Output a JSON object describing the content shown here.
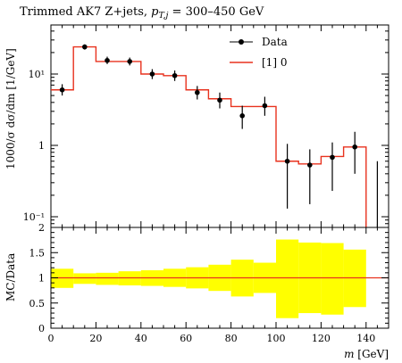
{
  "chart_data": [
    {
      "type": "line",
      "title_main": "Trimmed AK7 Z+jets, ",
      "title_cut": "p",
      "title_sub": "T,j",
      "title_range": " = 300–450 GeV",
      "ylabel": "1000/σ dσ/dm [1/GeV]",
      "yscale": "log",
      "ylim": [
        0.08,
        40
      ],
      "xlim": [
        0,
        150
      ],
      "ytick_labels": {
        "y01": "10⁻¹",
        "y1": "1",
        "y10": "10¹"
      },
      "legend": {
        "data_label": "Data",
        "mc_label": "[1] 0"
      },
      "data_points": {
        "x": [
          5,
          15,
          25,
          35,
          45,
          55,
          65,
          75,
          85,
          95,
          105,
          115,
          125,
          135,
          145
        ],
        "y": [
          6.0,
          24.0,
          15.5,
          15.0,
          10.0,
          9.5,
          5.5,
          4.3,
          2.6,
          3.6,
          0.6,
          0.53,
          0.68,
          0.95,
          0.02
        ],
        "ylo": [
          5.0,
          22.0,
          13.8,
          13.2,
          8.5,
          8.0,
          4.4,
          3.3,
          1.7,
          2.6,
          0.13,
          0.15,
          0.23,
          0.4,
          0.02
        ],
        "yhi": [
          7.2,
          26.0,
          17.5,
          17.0,
          11.7,
          11.2,
          6.8,
          5.5,
          3.6,
          4.8,
          1.05,
          0.88,
          1.1,
          1.55,
          0.6
        ]
      },
      "mc_histogram": {
        "edges": [
          0,
          10,
          20,
          30,
          40,
          50,
          60,
          70,
          80,
          90,
          100,
          110,
          120,
          130,
          140
        ],
        "values": [
          6.0,
          24.0,
          15.0,
          15.0,
          10.0,
          9.5,
          6.0,
          4.5,
          3.5,
          3.5,
          0.6,
          0.55,
          0.7,
          0.95
        ]
      }
    },
    {
      "type": "area",
      "ylabel": "MC/Data",
      "xlabel": "m [GeV]",
      "xlabel_var": "m",
      "xlabel_unit": " [GeV]",
      "ylim": [
        0,
        2
      ],
      "xlim": [
        0,
        150
      ],
      "xticks": [
        0,
        20,
        40,
        60,
        80,
        100,
        120,
        140
      ],
      "yticks": [
        0,
        0.5,
        1,
        1.5,
        2
      ],
      "ytick_labels": [
        "0",
        "0.5",
        "1",
        "1.5",
        "2"
      ],
      "band": {
        "edges": [
          0,
          10,
          20,
          30,
          40,
          50,
          60,
          70,
          80,
          90,
          100,
          110,
          120,
          130,
          140
        ],
        "lo": [
          0.8,
          0.88,
          0.86,
          0.85,
          0.84,
          0.82,
          0.79,
          0.74,
          0.63,
          0.7,
          0.2,
          0.3,
          0.27,
          0.42
        ],
        "hi": [
          1.18,
          1.09,
          1.1,
          1.13,
          1.15,
          1.18,
          1.21,
          1.26,
          1.36,
          1.3,
          1.76,
          1.7,
          1.69,
          1.56
        ]
      },
      "ratio_line": 1,
      "colors": {
        "band": "#ffff00",
        "line": "#e8321e",
        "mc": "#e8321e"
      }
    }
  ]
}
